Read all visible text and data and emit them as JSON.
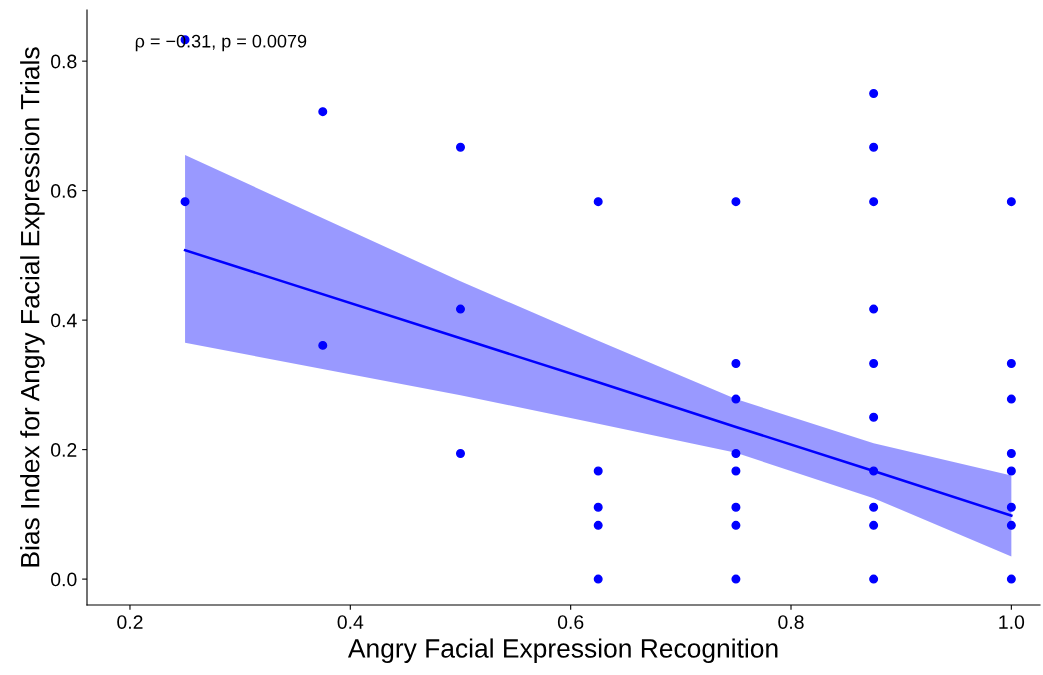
{
  "chart_data": {
    "type": "scatter",
    "xlabel": "Angry Facial Expression Recognition",
    "ylabel": "Bias Index for Angry Facial Expression Trials",
    "annotations": [
      "ρ = −0.31, p = 0.0079"
    ],
    "xlim": [
      0.161,
      1.026
    ],
    "ylim": [
      -0.04,
      0.879
    ],
    "xticks": [
      0.2,
      0.4,
      0.6,
      0.8,
      {
        "value": 1.0,
        "label": "1.0"
      }
    ],
    "yticks": [
      {
        "value": 0.0,
        "label": "0.0"
      },
      0.2,
      0.4,
      0.6,
      0.8
    ],
    "grid": false,
    "series": [
      {
        "marker": "circle",
        "color": "#0000ff",
        "x": [
          0.25,
          0.25,
          0.375,
          0.375,
          0.5,
          0.5,
          0.5,
          0.625,
          0.625,
          0.625,
          0.625,
          0.625,
          0.75,
          0.75,
          0.75,
          0.75,
          0.75,
          0.75,
          0.75,
          0.75,
          0.875,
          0.875,
          0.875,
          0.875,
          0.875,
          0.875,
          0.875,
          0.875,
          0.875,
          0.875,
          1.0,
          1.0,
          1.0,
          1.0,
          1.0,
          1.0,
          1.0,
          1.0
        ],
        "values": [
          0.833,
          0.583,
          0.722,
          0.361,
          0.667,
          0.417,
          0.194,
          0.583,
          0.167,
          0.111,
          0.083,
          0.0,
          0.583,
          0.333,
          0.278,
          0.194,
          0.167,
          0.111,
          0.083,
          0.0,
          0.75,
          0.667,
          0.583,
          0.417,
          0.333,
          0.25,
          0.167,
          0.111,
          0.083,
          0.0,
          0.583,
          0.333,
          0.278,
          0.194,
          0.167,
          0.111,
          0.083,
          0.0
        ]
      },
      {
        "type": "line",
        "marker": "none",
        "color": "#0000ff",
        "x": [
          0.25,
          0.5,
          0.625,
          0.75,
          0.875,
          1.0
        ],
        "values": [
          0.508,
          0.372,
          0.304,
          0.235,
          0.167,
          0.098
        ],
        "lower": [
          0.365,
          0.284,
          0.24,
          0.195,
          0.125,
          0.035
        ],
        "upper": [
          0.655,
          0.46,
          0.368,
          0.278,
          0.21,
          0.16
        ]
      }
    ]
  }
}
